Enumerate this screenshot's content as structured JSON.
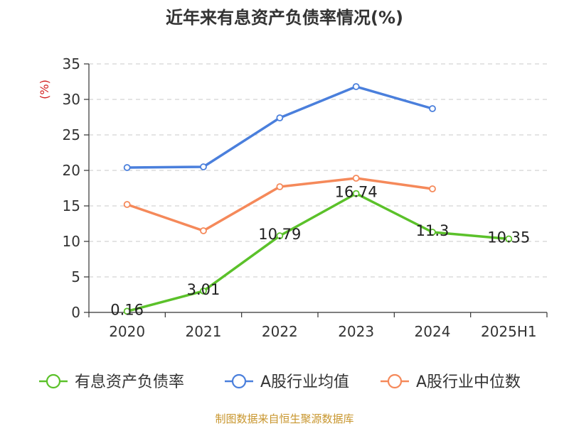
{
  "chart_data": {
    "type": "line",
    "title": "近年来有息资产负债率情况(%)",
    "ylabel": "(%)",
    "xlabel": "",
    "categories": [
      "2020",
      "2021",
      "2022",
      "2023",
      "2024",
      "2025H1"
    ],
    "ylim": [
      0,
      35
    ],
    "yticks": [
      0,
      5,
      10,
      15,
      20,
      25,
      30,
      35
    ],
    "grid": true,
    "legend_position": "bottom",
    "series": [
      {
        "name": "有息资产负债率",
        "color": "#5bc12a",
        "values": [
          0.16,
          3.01,
          10.79,
          16.74,
          11.3,
          10.35
        ],
        "labels": [
          "0.16",
          "3.01",
          "10.79",
          "16.74",
          "11.3",
          "10.35"
        ]
      },
      {
        "name": "A股行业均值",
        "color": "#4a7fdc",
        "values": [
          20.4,
          20.5,
          27.4,
          31.8,
          28.7,
          null
        ]
      },
      {
        "name": "A股行业中位数",
        "color": "#f5895a",
        "values": [
          15.2,
          11.5,
          17.7,
          18.9,
          17.4,
          null
        ]
      }
    ]
  },
  "source_note": "制图数据来自恒生聚源数据库"
}
